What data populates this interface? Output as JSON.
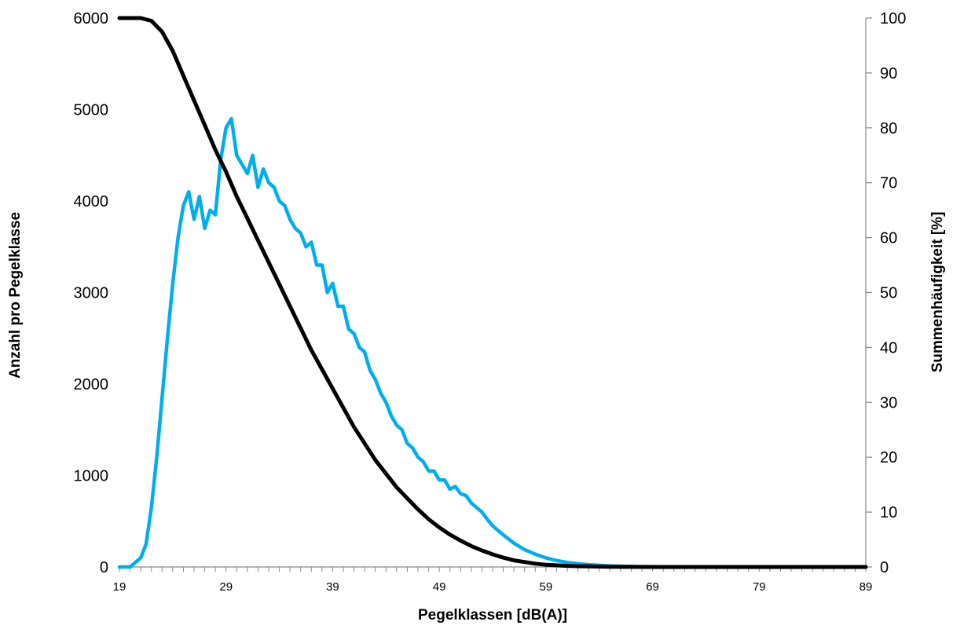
{
  "chart_data": {
    "type": "line",
    "title": "",
    "xlabel": "Pegelklassen [dB(A)]",
    "ylabel": "Anzahl pro Pegelklasse",
    "y2label": "Summenhäufigkeit [%]",
    "xlim": [
      19,
      89
    ],
    "ylim": [
      0,
      6000
    ],
    "y2lim": [
      0,
      100
    ],
    "x_ticks": [
      "19",
      "29",
      "39",
      "49",
      "59",
      "69",
      "79",
      "89"
    ],
    "y_ticks": [
      "0",
      "1000",
      "2000",
      "3000",
      "4000",
      "5000",
      "6000"
    ],
    "y2_ticks": [
      "0",
      "10",
      "20",
      "30",
      "40",
      "50",
      "60",
      "70",
      "80",
      "90",
      "100"
    ],
    "grid": false,
    "legend": "none",
    "series": [
      {
        "axis": "left",
        "color": "#00AEEF",
        "x": [
          19,
          20,
          21,
          21.5,
          22,
          22.5,
          23,
          23.5,
          24,
          24.5,
          25,
          25.5,
          26,
          26.5,
          27,
          27.5,
          28,
          28.5,
          29,
          29.5,
          30,
          30.5,
          31,
          31.5,
          32,
          32.5,
          33,
          33.5,
          34,
          34.5,
          35,
          35.5,
          36,
          36.5,
          37,
          37.5,
          38,
          38.5,
          39,
          39.5,
          40,
          40.5,
          41,
          41.5,
          42,
          42.5,
          43,
          43.5,
          44,
          44.5,
          45,
          45.5,
          46,
          46.5,
          47,
          47.5,
          48,
          48.5,
          49,
          49.5,
          50,
          50.5,
          51,
          51.5,
          52,
          52.5,
          53,
          53.5,
          54,
          55,
          56,
          57,
          58,
          59,
          60,
          61,
          62,
          63,
          64,
          65,
          66,
          67,
          68,
          69,
          70,
          72,
          75,
          80,
          85,
          89
        ],
        "y": [
          0,
          0,
          100,
          250,
          650,
          1200,
          1850,
          2500,
          3100,
          3600,
          3950,
          4100,
          3800,
          4050,
          3700,
          3900,
          3850,
          4450,
          4800,
          4900,
          4500,
          4400,
          4300,
          4500,
          4150,
          4350,
          4200,
          4150,
          4000,
          3950,
          3800,
          3700,
          3650,
          3500,
          3550,
          3300,
          3300,
          3000,
          3100,
          2850,
          2850,
          2600,
          2550,
          2400,
          2350,
          2150,
          2050,
          1900,
          1800,
          1650,
          1550,
          1500,
          1350,
          1300,
          1200,
          1150,
          1050,
          1050,
          950,
          950,
          850,
          880,
          800,
          780,
          700,
          650,
          600,
          520,
          450,
          350,
          260,
          190,
          140,
          100,
          70,
          50,
          35,
          25,
          18,
          12,
          8,
          5,
          3,
          2,
          1,
          0,
          0,
          0,
          0,
          0
        ]
      },
      {
        "axis": "right",
        "color": "#000000",
        "x": [
          19,
          20,
          21,
          22,
          23,
          24,
          25,
          26,
          27,
          28,
          29,
          30,
          31,
          32,
          33,
          34,
          35,
          36,
          37,
          38,
          39,
          40,
          41,
          42,
          43,
          44,
          45,
          46,
          47,
          48,
          49,
          50,
          51,
          52,
          53,
          54,
          55,
          56,
          57,
          58,
          59,
          60,
          61,
          62,
          63,
          65,
          67,
          70,
          75,
          80,
          89
        ],
        "y": [
          100,
          100,
          100,
          99.5,
          97.5,
          94,
          89.5,
          85,
          80.5,
          76,
          72,
          67.5,
          63.5,
          59.5,
          55.5,
          51.5,
          47.5,
          43.5,
          39.5,
          36,
          32.5,
          29,
          25.5,
          22.5,
          19.5,
          17,
          14.5,
          12.5,
          10.5,
          8.7,
          7.2,
          5.9,
          4.8,
          3.8,
          3,
          2.3,
          1.7,
          1.2,
          0.9,
          0.6,
          0.4,
          0.3,
          0.2,
          0.15,
          0.1,
          0.05,
          0.02,
          0,
          0,
          0,
          0
        ]
      }
    ]
  }
}
